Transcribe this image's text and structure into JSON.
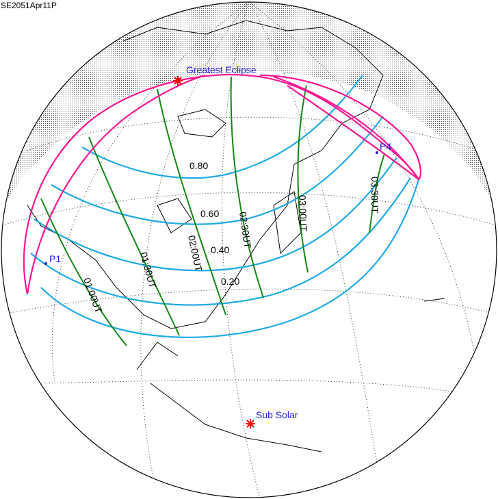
{
  "title": "SE2051Apr11P",
  "colors": {
    "outer_limits": "#ff1493",
    "magnitude_lines": "#1eaae6",
    "time_lines": "#118811",
    "labels": "#2222dd",
    "marker": "#ff0000"
  },
  "markers": {
    "greatest_eclipse": "Greatest Eclipse",
    "sub_solar": "Sub Solar",
    "p1": "P1",
    "p4": "P4"
  },
  "magnitudes": [
    "0.80",
    "0.60",
    "0.40",
    "0.20"
  ],
  "times": [
    "01:00UT",
    "01:30UT",
    "02:00UT",
    "02:30UT",
    "03:00UT",
    "03:30UT"
  ],
  "icons": {
    "greatest_eclipse": "asterisk-icon",
    "sub_solar": "asterisk-icon"
  }
}
